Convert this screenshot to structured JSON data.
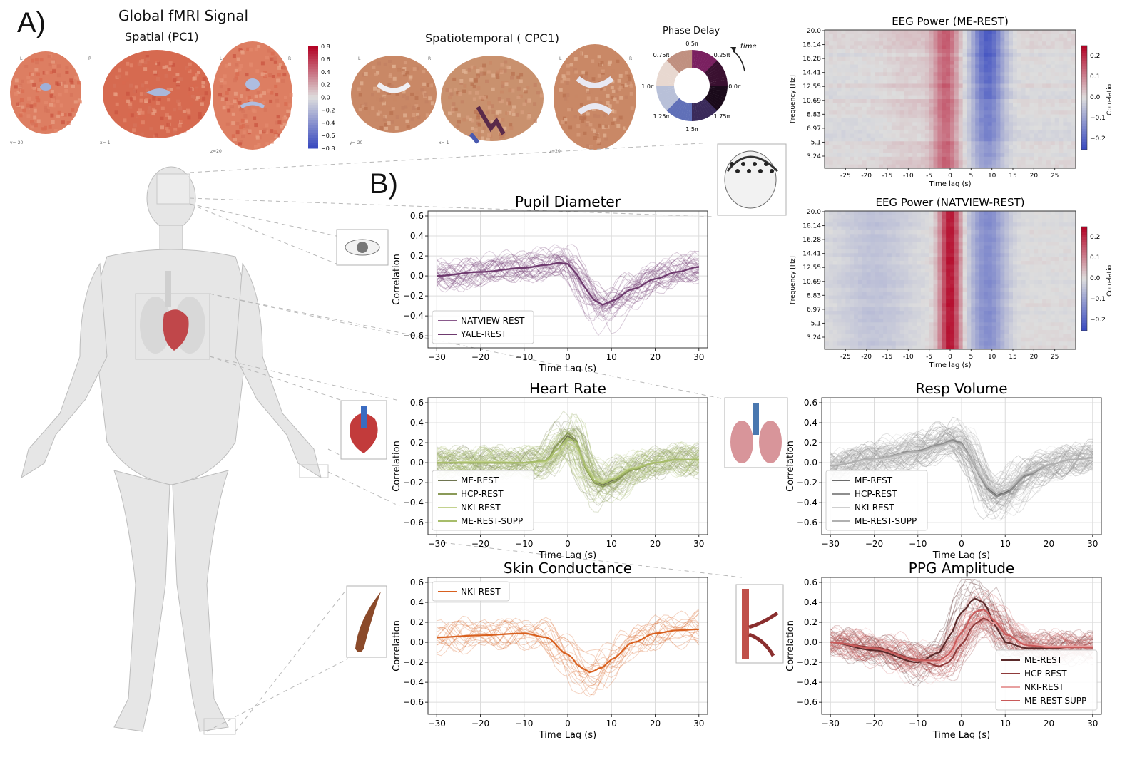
{
  "labels": {
    "panel_a": "A)",
    "panel_b": "B)",
    "global_title": "Global fMRI Signal",
    "spatial_title": "Spatial (PC1)",
    "spatiotemporal_title": "Spatiotemporal ( CPC1)",
    "phase_title": "Phase Delay",
    "phase_time": "time",
    "phase_ticks": [
      "0.5π",
      "0.25π",
      "0.0π",
      "1.75π",
      "1.5π",
      "1.25π",
      "1.0π",
      "0.75π"
    ],
    "brain_coords": [
      "y=-20",
      "x=-1",
      "z=20"
    ],
    "brain_lr": [
      "L",
      "R"
    ],
    "spatial_cbar_ticks": [
      "0.8",
      "0.6",
      "0.4",
      "0.2",
      "0.0",
      "−0.2",
      "−0.4",
      "−0.6",
      "−0.8"
    ]
  },
  "chart_data": [
    {
      "type": "heatmap",
      "title": "EEG Power (ME-REST)",
      "xlabel": "Time lag (s)",
      "ylabel": "Frequency [Hz]",
      "colorbar_label": "Correlation",
      "colorbar_ticks": [
        "0.2",
        "0.1",
        "0.0",
        "−0.1",
        "−0.2"
      ],
      "x_ticks": [
        "-25",
        "-20",
        "-15",
        "-10",
        "-5",
        "0",
        "5",
        "10",
        "15",
        "20",
        "25"
      ],
      "y_ticks": [
        "20.0",
        "18.14",
        "16.28",
        "14.41",
        "12.55",
        "10.69",
        "8.83",
        "6.97",
        "5.1",
        "3.24"
      ],
      "xlim": [
        -30,
        30
      ],
      "colormap": "coolwarm",
      "pattern": "positive correlation near 0 s lag, negative around 10 s lag, strongest negative at high frequencies"
    },
    {
      "type": "heatmap",
      "title": "EEG Power (NATVIEW-REST)",
      "xlabel": "Time lag (s)",
      "ylabel": "Frequency [Hz]",
      "colorbar_label": "Correlation",
      "colorbar_ticks": [
        "0.2",
        "0.1",
        "0.0",
        "−0.1",
        "−0.2"
      ],
      "x_ticks": [
        "-25",
        "-20",
        "-15",
        "-10",
        "-5",
        "0",
        "5",
        "10",
        "15",
        "20",
        "25"
      ],
      "y_ticks": [
        "20.0",
        "18.14",
        "16.28",
        "14.41",
        "12.55",
        "10.69",
        "8.83",
        "6.97",
        "5.1",
        "3.24"
      ],
      "xlim": [
        -30,
        30
      ],
      "colormap": "coolwarm",
      "pattern": "strong positive band centered at 0 s lag, negative band around 8-12 s lag"
    },
    {
      "type": "line",
      "title": "Pupil Diameter",
      "xlabel": "Time Lag (s)",
      "ylabel": "Correlation",
      "xlim": [
        -32,
        32
      ],
      "ylim": [
        -0.72,
        0.65
      ],
      "x_ticks": [
        -30,
        -20,
        -10,
        0,
        10,
        20,
        30
      ],
      "y_ticks": [
        0.6,
        0.4,
        0.2,
        0.0,
        -0.2,
        -0.4,
        -0.6
      ],
      "legend_position": "lower-left",
      "x": [
        -30,
        -20,
        -10,
        -5,
        -2,
        0,
        2,
        4,
        6,
        8,
        10,
        15,
        20,
        25,
        30
      ],
      "series": [
        {
          "name": "NATVIEW-REST",
          "color": "#8a5a8c",
          "values": [
            0.0,
            0.04,
            0.08,
            0.11,
            0.13,
            0.12,
            0.02,
            -0.12,
            -0.24,
            -0.29,
            -0.25,
            -0.13,
            -0.03,
            0.04,
            0.09
          ]
        },
        {
          "name": "YALE-REST",
          "color": "#6e3a6e",
          "values": [
            0.0,
            0.04,
            0.08,
            0.11,
            0.13,
            0.12,
            0.02,
            -0.12,
            -0.24,
            -0.29,
            -0.25,
            -0.13,
            -0.03,
            0.04,
            0.09
          ]
        }
      ]
    },
    {
      "type": "line",
      "title": "Heart Rate",
      "xlabel": "Time Lag (s)",
      "ylabel": "Correlation",
      "xlim": [
        -32,
        32
      ],
      "ylim": [
        -0.72,
        0.65
      ],
      "x_ticks": [
        -30,
        -20,
        -10,
        0,
        10,
        20,
        30
      ],
      "y_ticks": [
        0.6,
        0.4,
        0.2,
        0.0,
        -0.2,
        -0.4,
        -0.6
      ],
      "legend_position": "lower-left",
      "x": [
        -30,
        -20,
        -10,
        -5,
        -2,
        0,
        2,
        4,
        6,
        8,
        10,
        15,
        20,
        25,
        30
      ],
      "series": [
        {
          "name": "ME-REST",
          "color": "#6f7550",
          "values": [
            0.0,
            0.0,
            0.0,
            0.02,
            0.15,
            0.27,
            0.2,
            -0.05,
            -0.18,
            -0.22,
            -0.18,
            -0.06,
            0.0,
            0.03,
            0.03
          ]
        },
        {
          "name": "HCP-REST",
          "color": "#8a9a58",
          "values": [
            0.0,
            0.0,
            0.0,
            0.02,
            0.2,
            0.3,
            0.22,
            -0.05,
            -0.2,
            -0.24,
            -0.2,
            -0.07,
            0.0,
            0.03,
            0.03
          ]
        },
        {
          "name": "NKI-REST",
          "color": "#c3d28f",
          "values": [
            0.0,
            0.01,
            0.0,
            0.01,
            0.1,
            0.2,
            0.15,
            -0.03,
            -0.15,
            -0.19,
            -0.16,
            -0.05,
            0.0,
            0.03,
            0.03
          ]
        },
        {
          "name": "ME-REST-SUPP",
          "color": "#a7bd6a",
          "values": [
            0.0,
            0.0,
            0.0,
            0.02,
            0.15,
            0.25,
            0.2,
            -0.04,
            -0.18,
            -0.21,
            -0.17,
            -0.06,
            0.0,
            0.03,
            0.03
          ]
        }
      ]
    },
    {
      "type": "line",
      "title": "Resp Volume",
      "xlabel": "Time Lag (s)",
      "ylabel": "Correlation",
      "xlim": [
        -32,
        32
      ],
      "ylim": [
        -0.72,
        0.65
      ],
      "x_ticks": [
        -30,
        -20,
        -10,
        0,
        10,
        20,
        30
      ],
      "y_ticks": [
        0.6,
        0.4,
        0.2,
        0.0,
        -0.2,
        -0.4,
        -0.6
      ],
      "legend_position": "lower-left",
      "x": [
        -30,
        -20,
        -10,
        -5,
        -2,
        0,
        2,
        4,
        6,
        8,
        10,
        15,
        20,
        25,
        30
      ],
      "series": [
        {
          "name": "ME-REST",
          "color": "#6b6b6b",
          "values": [
            -0.03,
            0.04,
            0.12,
            0.18,
            0.22,
            0.18,
            0.05,
            -0.12,
            -0.26,
            -0.33,
            -0.3,
            -0.12,
            -0.02,
            0.03,
            0.05
          ]
        },
        {
          "name": "HCP-REST",
          "color": "#8e8e8e",
          "values": [
            -0.03,
            0.04,
            0.12,
            0.18,
            0.23,
            0.2,
            0.06,
            -0.12,
            -0.27,
            -0.34,
            -0.31,
            -0.13,
            -0.02,
            0.03,
            0.05
          ]
        },
        {
          "name": "NKI-REST",
          "color": "#cfcfcf",
          "values": [
            -0.02,
            0.03,
            0.1,
            0.16,
            0.2,
            0.17,
            0.05,
            -0.1,
            -0.22,
            -0.28,
            -0.25,
            -0.1,
            -0.02,
            0.03,
            0.05
          ]
        },
        {
          "name": "ME-REST-SUPP",
          "color": "#b0b0b0",
          "values": [
            -0.03,
            0.04,
            0.11,
            0.17,
            0.21,
            0.18,
            0.05,
            -0.11,
            -0.24,
            -0.31,
            -0.28,
            -0.11,
            -0.02,
            0.03,
            0.05
          ]
        }
      ]
    },
    {
      "type": "line",
      "title": "Skin Conductance",
      "xlabel": "Time Lag (s)",
      "ylabel": "Correlation",
      "xlim": [
        -32,
        32
      ],
      "ylim": [
        -0.72,
        0.65
      ],
      "x_ticks": [
        -30,
        -20,
        -10,
        0,
        10,
        20,
        30
      ],
      "y_ticks": [
        0.6,
        0.4,
        0.2,
        0.0,
        -0.2,
        -0.4,
        -0.6
      ],
      "legend_position": "upper-left",
      "x": [
        -30,
        -20,
        -10,
        -5,
        0,
        3,
        5,
        8,
        10,
        15,
        20,
        25,
        30
      ],
      "series": [
        {
          "name": "NKI-REST",
          "color": "#d8601f",
          "values": [
            0.05,
            0.07,
            0.09,
            0.05,
            -0.12,
            -0.25,
            -0.3,
            -0.25,
            -0.17,
            0.0,
            0.09,
            0.12,
            0.13
          ]
        }
      ]
    },
    {
      "type": "line",
      "title": "PPG Amplitude",
      "xlabel": "Time Lag (s)",
      "ylabel": "Correlation",
      "xlim": [
        -32,
        32
      ],
      "ylim": [
        -0.72,
        0.65
      ],
      "x_ticks": [
        -30,
        -20,
        -10,
        0,
        10,
        20,
        30
      ],
      "y_ticks": [
        0.6,
        0.4,
        0.2,
        0.0,
        -0.2,
        -0.4,
        -0.6
      ],
      "legend_position": "lower-right",
      "x": [
        -30,
        -20,
        -10,
        -5,
        -3,
        0,
        3,
        5,
        8,
        10,
        15,
        20,
        25,
        30
      ],
      "series": [
        {
          "name": "ME-REST",
          "color": "#5a2a2a",
          "values": [
            0.0,
            -0.08,
            -0.2,
            -0.1,
            0.05,
            0.3,
            0.44,
            0.4,
            0.15,
            0.0,
            -0.06,
            -0.06,
            -0.05,
            -0.05
          ]
        },
        {
          "name": "HCP-REST",
          "color": "#8f3a3a",
          "values": [
            0.0,
            -0.05,
            -0.17,
            -0.24,
            -0.2,
            -0.02,
            0.18,
            0.24,
            0.18,
            0.08,
            -0.02,
            -0.04,
            -0.04,
            -0.04
          ]
        },
        {
          "name": "NKI-REST",
          "color": "#e8a0a0",
          "values": [
            0.0,
            -0.06,
            -0.18,
            -0.2,
            -0.15,
            0.05,
            0.22,
            0.26,
            0.18,
            0.08,
            -0.02,
            -0.04,
            -0.04,
            -0.04
          ]
        },
        {
          "name": "ME-REST-SUPP",
          "color": "#c95a5a",
          "values": [
            0.0,
            -0.06,
            -0.18,
            -0.18,
            -0.12,
            0.1,
            0.3,
            0.33,
            0.2,
            0.08,
            -0.03,
            -0.05,
            -0.05,
            -0.05
          ]
        }
      ]
    }
  ]
}
